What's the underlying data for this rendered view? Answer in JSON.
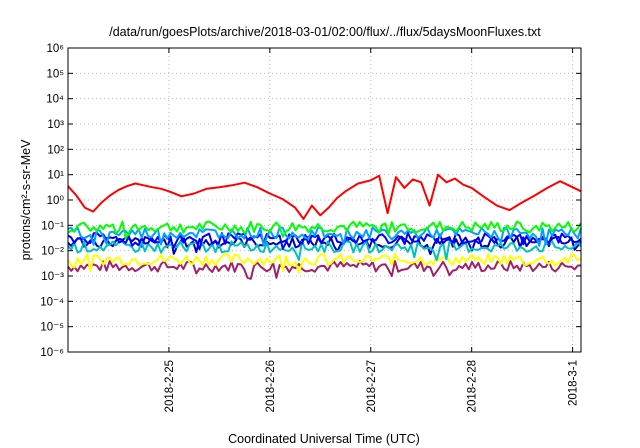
{
  "chart_data": {
    "type": "line",
    "title": "/data/run/goesPlots/archive/2018-03-01/02:00/flux/../flux/5daysMoonFluxes.txt",
    "xlabel": "Coordinated Universal Time (UTC)",
    "ylabel": "protons/cm²-s-sr-MeV",
    "yscale": "log",
    "ylim": [
      1e-06,
      1000000.0
    ],
    "xlim": [
      "2018-02-24T00:00",
      "2018-03-01T02:00"
    ],
    "grid": true,
    "y_ticks": [
      {
        "value": 1e-06,
        "label": "10⁻⁶"
      },
      {
        "value": 1e-05,
        "label": "10⁻⁵"
      },
      {
        "value": 0.0001,
        "label": "10⁻⁴"
      },
      {
        "value": 0.001,
        "label": "10⁻³"
      },
      {
        "value": 0.01,
        "label": "10⁻²"
      },
      {
        "value": 0.1,
        "label": "10⁻¹"
      },
      {
        "value": 1.0,
        "label": "10⁰"
      },
      {
        "value": 10.0,
        "label": "10¹"
      },
      {
        "value": 100.0,
        "label": "10²"
      },
      {
        "value": 1000.0,
        "label": "10³"
      },
      {
        "value": 10000.0,
        "label": "10⁴"
      },
      {
        "value": 100000.0,
        "label": "10⁵"
      },
      {
        "value": 1000000.0,
        "label": "10⁶"
      }
    ],
    "x_ticks": [
      {
        "value": "2018-02-25T00:00",
        "label": "2018-2-25"
      },
      {
        "value": "2018-02-26T00:00",
        "label": "2018-2-26"
      },
      {
        "value": "2018-02-27T00:00",
        "label": "2018-2-27"
      },
      {
        "value": "2018-02-28T00:00",
        "label": "2018-2-28"
      },
      {
        "value": "2018-03-01T00:00",
        "label": "2018-3-1"
      }
    ],
    "series": [
      {
        "color": "#ff0000",
        "x": [
          "2018-02-24T00:00",
          "2018-02-24T02:00",
          "2018-02-24T04:00",
          "2018-02-24T06:00",
          "2018-02-24T08:00",
          "2018-02-24T10:00",
          "2018-02-24T12:00",
          "2018-02-24T14:00",
          "2018-02-24T16:00",
          "2018-02-24T18:00",
          "2018-02-24T20:00",
          "2018-02-24T22:00",
          "2018-02-25T00:00",
          "2018-02-25T03:00",
          "2018-02-25T06:00",
          "2018-02-25T09:00",
          "2018-02-25T12:00",
          "2018-02-25T15:00",
          "2018-02-25T18:00",
          "2018-02-25T21:00",
          "2018-02-26T00:00",
          "2018-02-26T03:00",
          "2018-02-26T06:00",
          "2018-02-26T08:00",
          "2018-02-26T10:00",
          "2018-02-26T12:00",
          "2018-02-26T14:00",
          "2018-02-26T16:00",
          "2018-02-26T18:00",
          "2018-02-26T21:00",
          "2018-02-27T00:00",
          "2018-02-27T02:00",
          "2018-02-27T04:00",
          "2018-02-27T06:00",
          "2018-02-27T08:00",
          "2018-02-27T10:00",
          "2018-02-27T12:00",
          "2018-02-27T14:00",
          "2018-02-27T16:00",
          "2018-02-27T18:00",
          "2018-02-27T20:00",
          "2018-02-27T22:00",
          "2018-02-28T00:00",
          "2018-02-28T03:00",
          "2018-02-28T06:00",
          "2018-02-28T09:00",
          "2018-02-28T12:00",
          "2018-02-28T15:00",
          "2018-02-28T18:00",
          "2018-02-28T21:00",
          "2018-03-01T00:00",
          "2018-03-01T02:00"
        ],
        "values": [
          3.5,
          1.5,
          0.5,
          0.35,
          0.8,
          1.5,
          2.5,
          3.5,
          4.5,
          3.8,
          3.2,
          2.8,
          2.2,
          1.4,
          1.8,
          2.8,
          3.2,
          3.8,
          4.8,
          3.2,
          1.8,
          1.1,
          0.5,
          0.18,
          0.6,
          0.25,
          0.5,
          1.2,
          2.2,
          4.5,
          6.0,
          9.0,
          0.3,
          8.0,
          3.0,
          6.5,
          5.0,
          0.6,
          10.0,
          5.0,
          7.0,
          4.0,
          3.0,
          1.3,
          0.6,
          0.4,
          0.8,
          1.5,
          3.0,
          5.5,
          3.2,
          2.2
        ]
      },
      {
        "color": "#00ff00",
        "base": 0.085
      },
      {
        "color": "#00a0ff",
        "base": 0.05
      },
      {
        "color": "#0000ff",
        "base": 0.03
      },
      {
        "color": "#00c0c0",
        "base": 0.014
      },
      {
        "color": "#0000c0",
        "base": 0.022
      },
      {
        "color": "#ffff00",
        "base": 0.0045
      },
      {
        "color": "#a0206a",
        "base": 0.0024
      }
    ]
  }
}
